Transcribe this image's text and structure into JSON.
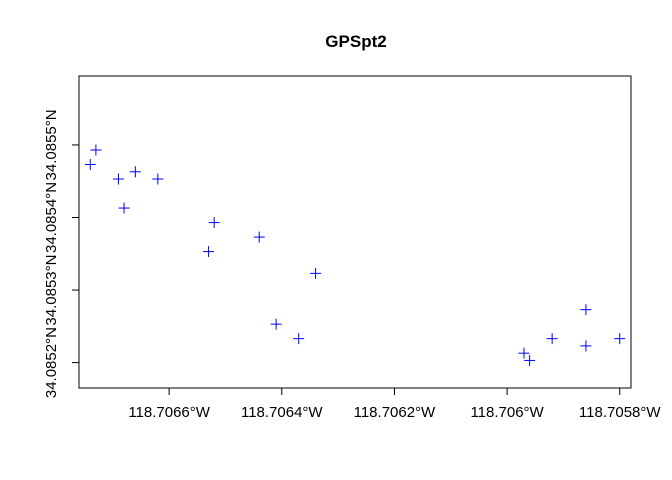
{
  "chart_data": {
    "type": "scatter",
    "title": "GPSpt2",
    "xlabel": "",
    "ylabel": "",
    "marker": "+",
    "marker_color": "#0000ff",
    "grid": false,
    "xlim": [
      -118.70676,
      -118.70578
    ],
    "ylim": [
      34.085165,
      34.085595
    ],
    "x_ticks": [
      {
        "value": -118.7066,
        "label": "118.7066°W"
      },
      {
        "value": -118.7064,
        "label": "118.7064°W"
      },
      {
        "value": -118.7062,
        "label": "118.7062°W"
      },
      {
        "value": -118.706,
        "label": "118.706°W"
      },
      {
        "value": -118.7058,
        "label": "118.7058°W"
      }
    ],
    "y_ticks": [
      {
        "value": 34.0852,
        "label": "34.0852°N"
      },
      {
        "value": 34.0853,
        "label": "34.0853°N"
      },
      {
        "value": 34.0854,
        "label": "34.0854°N"
      },
      {
        "value": 34.0855,
        "label": "34.0855°N"
      }
    ],
    "points": [
      {
        "x": -118.70674,
        "y": 34.085473
      },
      {
        "x": -118.70673,
        "y": 34.085493
      },
      {
        "x": -118.70669,
        "y": 34.085453
      },
      {
        "x": -118.70668,
        "y": 34.085413
      },
      {
        "x": -118.70666,
        "y": 34.085463
      },
      {
        "x": -118.70662,
        "y": 34.085453
      },
      {
        "x": -118.70653,
        "y": 34.085353
      },
      {
        "x": -118.70652,
        "y": 34.085393
      },
      {
        "x": -118.70644,
        "y": 34.085373
      },
      {
        "x": -118.70641,
        "y": 34.085253
      },
      {
        "x": -118.70637,
        "y": 34.085233
      },
      {
        "x": -118.70634,
        "y": 34.085323
      },
      {
        "x": -118.70597,
        "y": 34.085213
      },
      {
        "x": -118.70596,
        "y": 34.085203
      },
      {
        "x": -118.70592,
        "y": 34.085233
      },
      {
        "x": -118.70586,
        "y": 34.085273
      },
      {
        "x": -118.70586,
        "y": 34.085223
      },
      {
        "x": -118.7058,
        "y": 34.085233
      }
    ]
  }
}
